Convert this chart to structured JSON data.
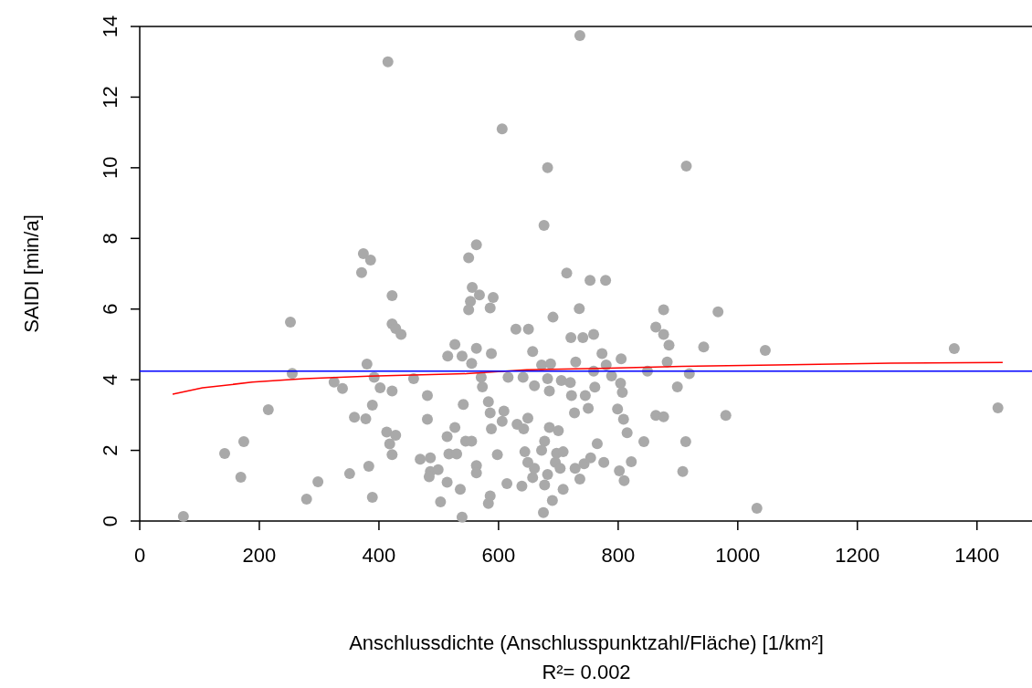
{
  "chart_data": {
    "type": "scatter",
    "xlabel": "Anschlussdichte (Anschlusspunktzahl/Fläche) [1/km²]",
    "ylabel": "SAIDI [min/a]",
    "annotations": [
      "R²= 0.002"
    ],
    "xlim": [
      0,
      1492
    ],
    "ylim": [
      0,
      14
    ],
    "xticks": [
      0,
      200,
      400,
      600,
      800,
      1000,
      1200,
      1400
    ],
    "yticks": [
      0,
      2,
      4,
      6,
      8,
      10,
      12,
      14
    ],
    "grid": false,
    "ref_lines": [
      {
        "axis": "y",
        "value": 4.24,
        "color": "#0000ff"
      },
      {
        "axis": "y",
        "value": 14,
        "color": "#000000"
      }
    ],
    "series": [
      {
        "marker": "circle",
        "color": "#a9a9a9",
        "x": [
          374,
          386,
          371,
          252,
          255,
          215,
          174,
          142,
          169,
          298,
          279,
          73,
          351,
          325,
          339,
          380,
          359,
          378,
          383,
          389,
          389,
          563,
          550,
          422,
          422,
          428,
          437,
          527,
          515,
          539,
          563,
          588,
          555,
          629,
          650,
          657,
          672,
          556,
          568,
          553,
          550,
          591,
          586,
          392,
          402,
          422,
          458,
          481,
          481,
          541,
          571,
          573,
          583,
          586,
          609,
          606,
          616,
          641,
          660,
          588,
          631,
          649,
          642,
          413,
          428,
          418,
          422,
          514,
          527,
          545,
          555,
          517,
          530,
          469,
          486,
          486,
          499,
          484,
          514,
          536,
          503,
          539,
          563,
          563,
          586,
          583,
          598,
          614,
          639,
          644,
          649,
          660,
          657,
          675,
          714,
          753,
          779,
          735,
          691,
          721,
          741,
          759,
          876,
          863,
          876,
          885,
          967,
          943,
          773,
          729,
          805,
          780,
          882,
          759,
          789,
          849,
          919,
          682,
          705,
          720,
          685,
          761,
          804,
          807,
          722,
          745,
          899,
          750,
          727,
          799,
          809,
          863,
          876,
          980,
          685,
          700,
          815,
          677,
          672,
          765,
          843,
          913,
          697,
          708,
          695,
          703,
          728,
          743,
          754,
          736,
          776,
          822,
          802,
          810,
          908,
          682,
          677,
          708,
          690,
          687,
          415,
          736,
          606,
          682,
          914,
          676,
          1046,
          1032,
          1362,
          1435
        ],
        "values": [
          7.57,
          7.39,
          7.03,
          5.63,
          4.18,
          3.15,
          2.25,
          1.91,
          1.24,
          1.11,
          0.62,
          0.13,
          1.34,
          3.93,
          3.75,
          4.44,
          2.94,
          2.89,
          1.55,
          0.67,
          3.28,
          7.82,
          7.45,
          6.38,
          5.58,
          5.45,
          5.28,
          5.0,
          4.67,
          4.67,
          4.89,
          4.74,
          4.46,
          5.43,
          5.43,
          4.8,
          4.42,
          6.61,
          6.4,
          6.22,
          5.98,
          6.33,
          6.03,
          4.07,
          3.77,
          3.68,
          4.03,
          3.55,
          2.88,
          3.3,
          4.07,
          3.8,
          3.38,
          3.06,
          3.11,
          2.82,
          4.07,
          4.07,
          3.83,
          2.61,
          2.74,
          2.91,
          2.61,
          2.52,
          2.43,
          2.18,
          1.88,
          2.39,
          2.65,
          2.26,
          2.26,
          1.9,
          1.9,
          1.75,
          1.79,
          1.4,
          1.45,
          1.25,
          1.1,
          0.9,
          0.54,
          0.11,
          1.57,
          1.36,
          0.71,
          0.5,
          1.88,
          1.06,
          0.99,
          1.96,
          1.66,
          1.49,
          1.23,
          0.24,
          7.02,
          6.81,
          6.81,
          6.01,
          5.77,
          5.19,
          5.19,
          5.28,
          5.98,
          5.49,
          5.28,
          4.98,
          5.92,
          4.93,
          4.74,
          4.5,
          4.59,
          4.42,
          4.5,
          4.24,
          4.11,
          4.24,
          4.17,
          4.03,
          3.98,
          3.92,
          3.68,
          3.79,
          3.9,
          3.64,
          3.55,
          3.55,
          3.8,
          3.19,
          3.06,
          3.17,
          2.88,
          2.99,
          2.95,
          2.99,
          2.65,
          2.56,
          2.5,
          2.26,
          2.0,
          2.19,
          2.25,
          2.25,
          1.92,
          1.96,
          1.66,
          1.49,
          1.49,
          1.62,
          1.79,
          1.19,
          1.66,
          1.68,
          1.42,
          1.14,
          1.4,
          1.32,
          1.02,
          0.9,
          0.58,
          4.45,
          13.0,
          13.74,
          11.1,
          10.0,
          10.05,
          8.37,
          4.83,
          0.36,
          4.88,
          3.2
        ]
      },
      {
        "type": "line",
        "color": "#ff0000",
        "x": [
          55,
          105,
          188,
          275,
          383,
          546,
          647,
          769,
          907,
          1063,
          1256,
          1443
        ],
        "values": [
          3.59,
          3.77,
          3.93,
          4.03,
          4.1,
          4.17,
          4.28,
          4.32,
          4.38,
          4.42,
          4.47,
          4.49
        ]
      }
    ]
  }
}
